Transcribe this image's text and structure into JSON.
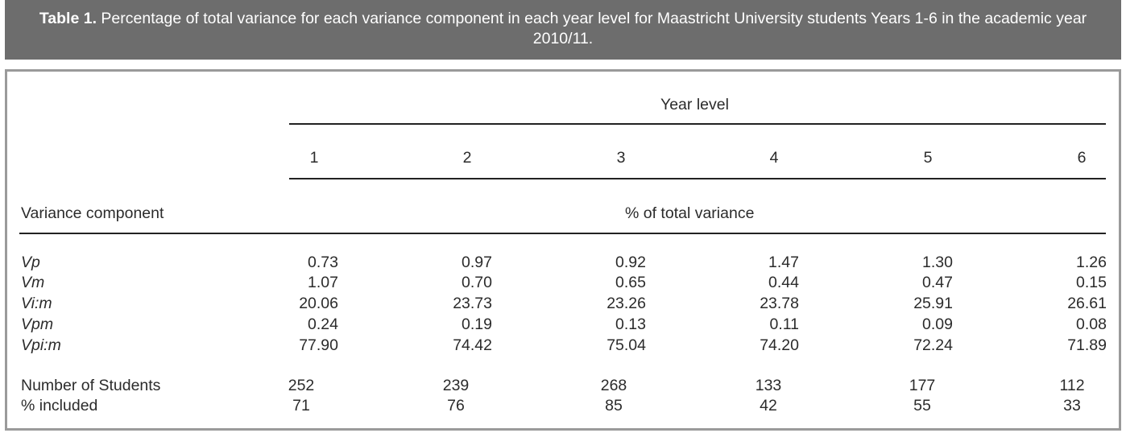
{
  "caption": {
    "label": "Table 1.",
    "text": "Percentage of total variance for each variance component in each year level for Maastricht University students Years 1-6 in the academic year 2010/11."
  },
  "table": {
    "year_level_header": "Year level",
    "years": [
      "1",
      "2",
      "3",
      "4",
      "5",
      "6"
    ],
    "row_header": "Variance component",
    "value_header": "% of total variance",
    "components": [
      {
        "name": "Vp",
        "values": [
          "0.73",
          "0.97",
          "0.92",
          "1.47",
          "1.30",
          "1.26"
        ]
      },
      {
        "name": "Vm",
        "values": [
          "1.07",
          "0.70",
          "0.65",
          "0.44",
          "0.47",
          "0.15"
        ]
      },
      {
        "name": "Vi:m",
        "values": [
          "20.06",
          "23.73",
          "23.26",
          "23.78",
          "25.91",
          "26.61"
        ]
      },
      {
        "name": "Vpm",
        "values": [
          "0.24",
          "0.19",
          "0.13",
          "0.11",
          "0.09",
          "0.08"
        ]
      },
      {
        "name": "Vpi:m",
        "values": [
          "77.90",
          "74.42",
          "75.04",
          "74.20",
          "72.24",
          "71.89"
        ]
      }
    ],
    "summary": [
      {
        "name": "Number of Students",
        "values": [
          "252",
          "239",
          "268",
          "133",
          "177",
          "112"
        ]
      },
      {
        "name": "% included",
        "values": [
          "71",
          "76",
          "85",
          "42",
          "55",
          "33"
        ]
      }
    ]
  }
}
